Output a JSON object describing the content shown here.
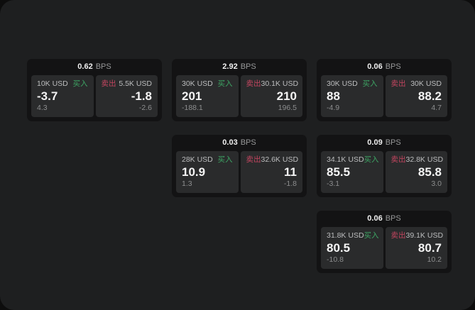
{
  "labels": {
    "bps_unit": "BPS",
    "buy": "买入",
    "sell": "卖出"
  },
  "colors": {
    "page_bg": "#1e1f20",
    "card_bg": "#131314",
    "panel_bg": "#2a2b2c",
    "buy_green": "#3da564",
    "sell_red": "#c2455f"
  },
  "cards": [
    {
      "bps": "0.62",
      "buy": {
        "amount": "10K USD",
        "price": "-3.7",
        "delta": "4.3"
      },
      "sell": {
        "amount": "5.5K USD",
        "price": "-1.8",
        "delta": "-2.6"
      }
    },
    {
      "bps": "2.92",
      "buy": {
        "amount": "30K USD",
        "price": "201",
        "delta": "-188.1"
      },
      "sell": {
        "amount": "30.1K USD",
        "price": "210",
        "delta": "196.5"
      }
    },
    {
      "bps": "0.06",
      "buy": {
        "amount": "30K USD",
        "price": "88",
        "delta": "-4.9"
      },
      "sell": {
        "amount": "30K USD",
        "price": "88.2",
        "delta": "4.7"
      }
    },
    {
      "bps": "0.03",
      "buy": {
        "amount": "28K USD",
        "price": "10.9",
        "delta": "1.3"
      },
      "sell": {
        "amount": "32.6K USD",
        "price": "11",
        "delta": "-1.8"
      }
    },
    {
      "bps": "0.09",
      "buy": {
        "amount": "34.1K USD",
        "price": "85.5",
        "delta": "-3.1"
      },
      "sell": {
        "amount": "32.8K USD",
        "price": "85.8",
        "delta": "3.0"
      }
    },
    {
      "bps": "0.06",
      "buy": {
        "amount": "31.8K USD",
        "price": "80.5",
        "delta": "-10.8"
      },
      "sell": {
        "amount": "39.1K USD",
        "price": "80.7",
        "delta": "10.2"
      }
    }
  ]
}
